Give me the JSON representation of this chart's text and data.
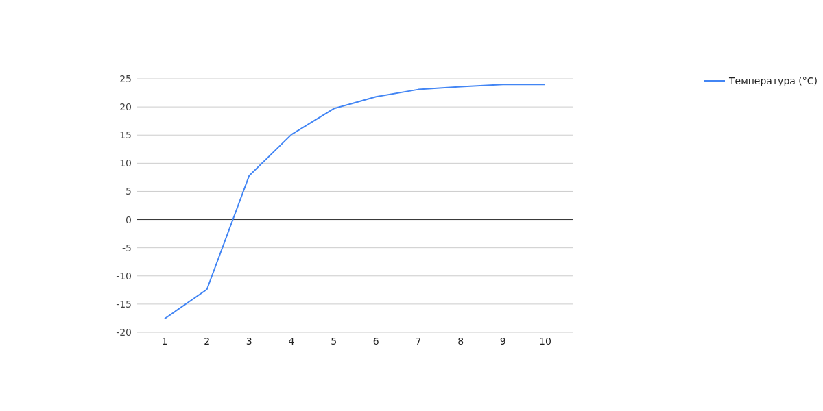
{
  "chart_data": {
    "type": "line",
    "categories": [
      "1",
      "2",
      "3",
      "4",
      "5",
      "6",
      "7",
      "8",
      "9",
      "10"
    ],
    "series": [
      {
        "name": "Температура (°C)",
        "color": "#4285f4",
        "values": [
          -17.6,
          -12.4,
          7.8,
          15.1,
          19.7,
          21.8,
          23.1,
          23.6,
          24.0,
          24.0
        ]
      }
    ],
    "ylim": [
      -20,
      25
    ],
    "yticks": [
      -20,
      -15,
      -10,
      -5,
      0,
      5,
      10,
      15,
      20,
      25
    ],
    "grid": "y",
    "legend": "right",
    "marker": "none",
    "line_style": "solid",
    "ref_lines": [
      {
        "axis": "y",
        "value": 0,
        "color": "#333333"
      }
    ]
  }
}
